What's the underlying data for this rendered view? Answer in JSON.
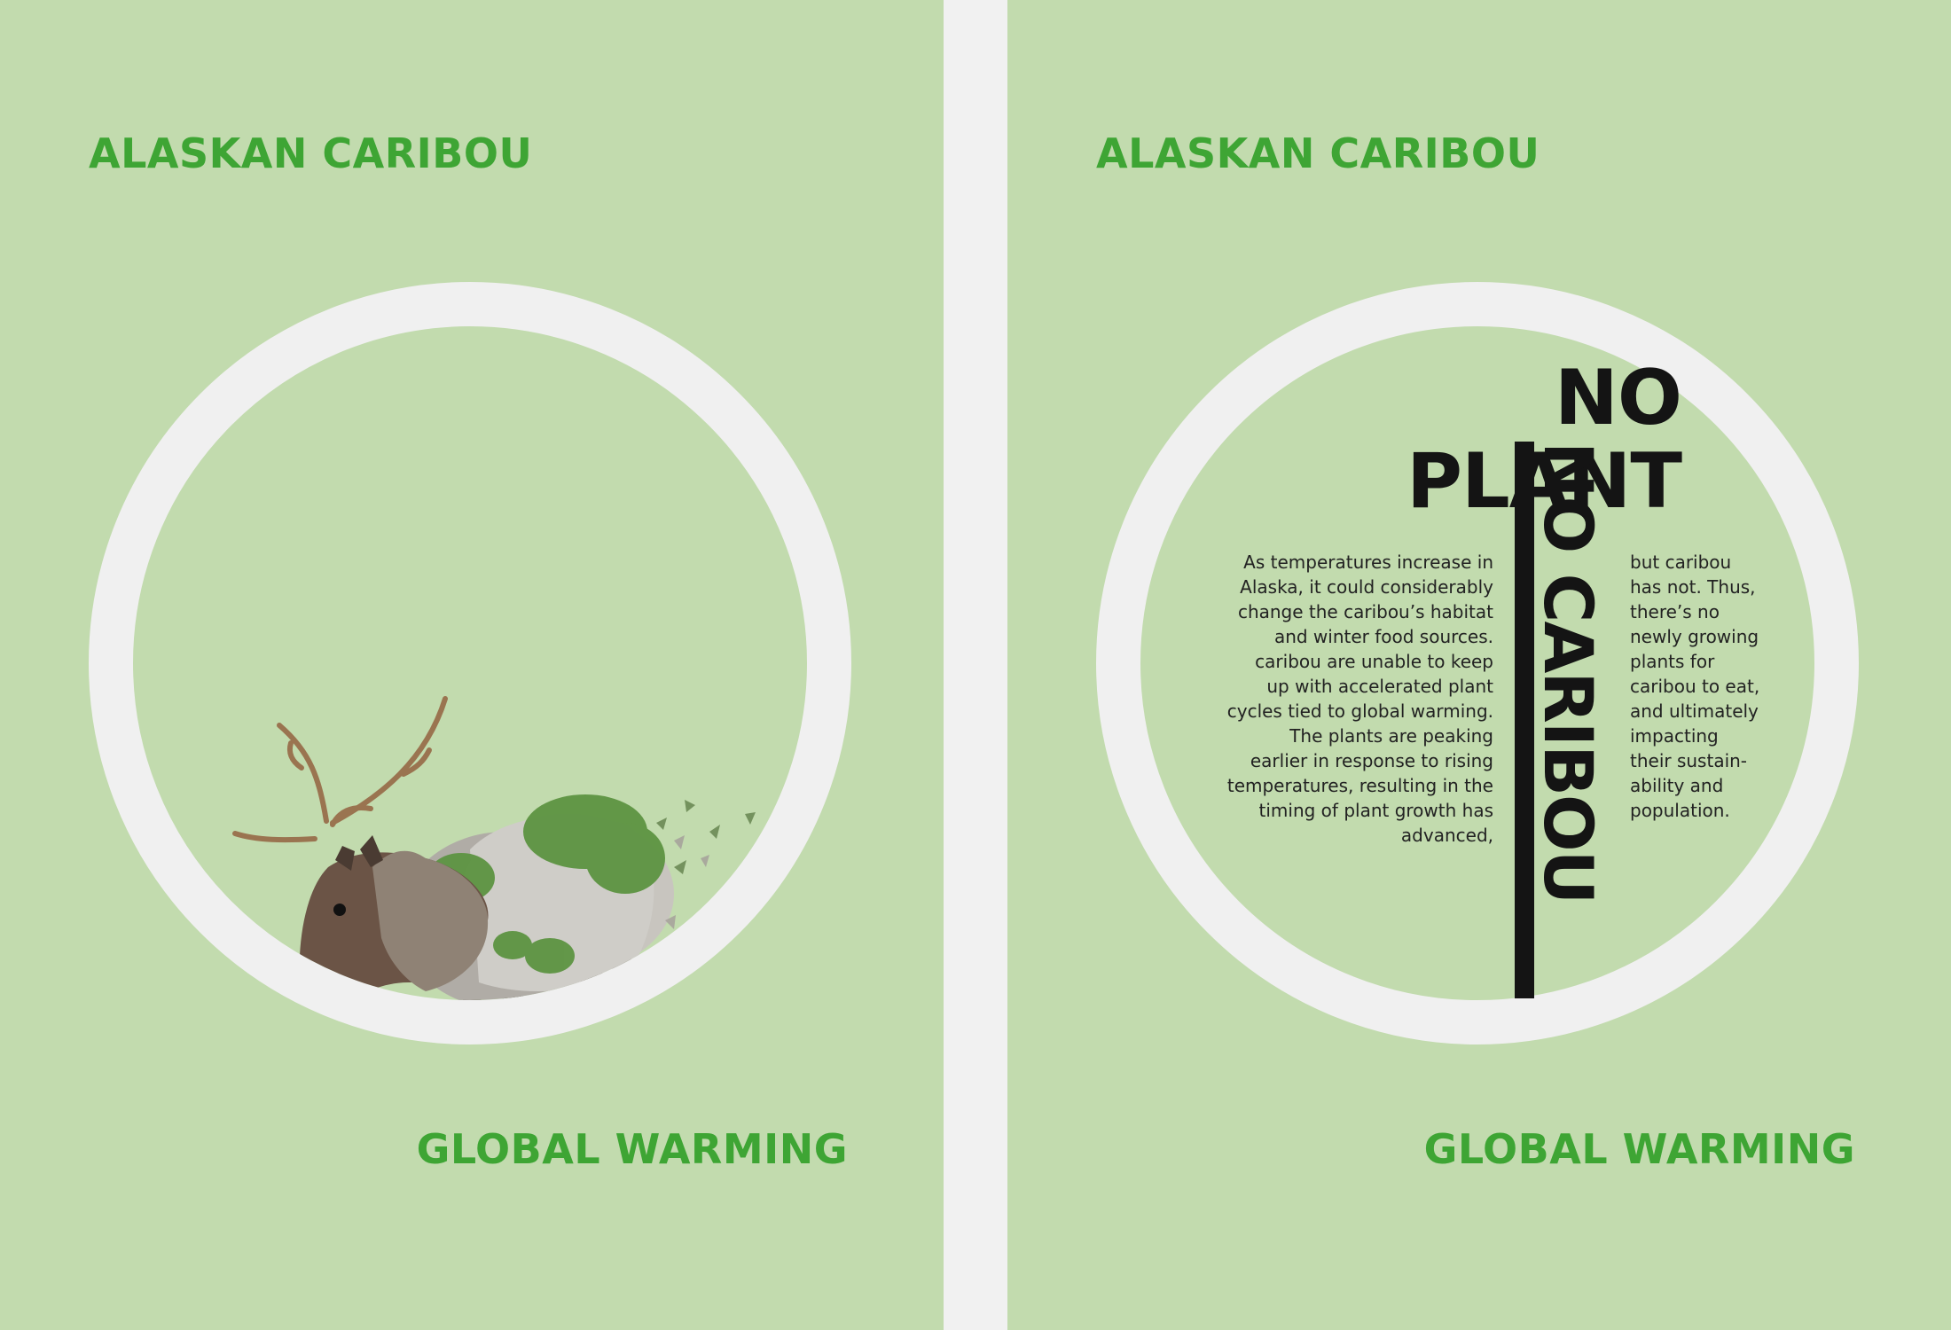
{
  "left_panel": {
    "title_top": "ALASKAN CARIBOU",
    "title_bottom": "GLOBAL WARMING"
  },
  "right_panel": {
    "title_top": "ALASKAN CARIBOU",
    "title_bottom": "GLOBAL WARMING",
    "headline_line1": "NO",
    "headline_line2": "PLANT",
    "headline_vertical": "NO CARIBOU",
    "body_left": [
      "As temperatures increase in",
      "Alaska, it could considerably",
      "change the caribou’s habitat",
      "and winter food sources.",
      "caribou are unable to keep",
      "up with accelerated plant",
      "cycles tied to global warming.",
      "The plants are peaking",
      "earlier in response to rising",
      "temperatures, resulting in the",
      "timing of plant growth has",
      "advanced,"
    ],
    "body_right": [
      "but caribou",
      "has not. Thus,",
      "there’s no",
      "newly growing",
      "plants for",
      "caribou to eat,",
      "and ultimately",
      "impacting",
      "their sustain-",
      "ability and",
      "population."
    ]
  },
  "colors": {
    "panel_background": "#c2dbae",
    "ring": "#f0f0f0",
    "title_green": "#3ea534",
    "headline_black": "#141414"
  },
  "icons": {
    "caribou_illustration": "dispersing-caribou-icon"
  }
}
